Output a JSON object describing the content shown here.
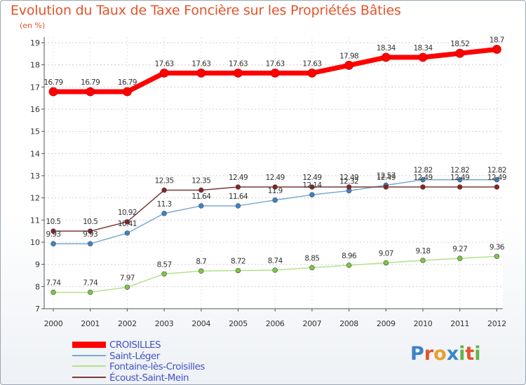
{
  "title": "Evolution du Taux de Taxe Foncière sur les Propriétés Bâties",
  "unit_label": "(en %)",
  "brand": {
    "text": "Proxiti",
    "letters": [
      "P",
      "r",
      "o",
      "x",
      "i",
      "t",
      "i"
    ],
    "letter_colors": [
      "#3c84c8",
      "#e3542b",
      "#e8a02c",
      "#3c84c8",
      "#62b44a",
      "#e3542b",
      "#62b44a"
    ]
  },
  "chart_data": {
    "type": "line",
    "title": "Evolution du Taux de Taxe Foncière sur les Propriétés Bâties",
    "ylabel": "(en %)",
    "xlabel": "",
    "categories": [
      "2000",
      "2001",
      "2002",
      "2003",
      "2004",
      "2005",
      "2006",
      "2007",
      "2008",
      "2009",
      "2010",
      "2011",
      "2012"
    ],
    "ylim": [
      7,
      19
    ],
    "yticks": [
      7,
      8,
      9,
      10,
      11,
      12,
      13,
      14,
      15,
      16,
      17,
      18,
      19
    ],
    "grid": true,
    "legend_position": "bottom-left",
    "series": [
      {
        "name": "CROISILLES",
        "color": "#ff0000",
        "marker_color": "#ff0000",
        "style": "thick",
        "values": [
          16.79,
          16.79,
          16.79,
          17.63,
          17.63,
          17.63,
          17.63,
          17.63,
          17.98,
          18.34,
          18.34,
          18.52,
          18.7
        ],
        "labels": [
          "16.79",
          "16.79",
          "16.79",
          "17.63",
          "17.63",
          "17.63",
          "17.63",
          "17.63",
          "17.98",
          "18.34",
          "18.34",
          "18.52",
          "18.7"
        ]
      },
      {
        "name": "Saint-Léger",
        "color": "#7ba9d4",
        "marker_color": "#3c84c8",
        "style": "thin",
        "values": [
          9.93,
          9.93,
          10.41,
          11.3,
          11.64,
          11.64,
          11.9,
          12.14,
          12.32,
          12.57,
          12.82,
          12.82,
          12.82
        ],
        "labels": [
          "9.93",
          "9.93",
          "10.41",
          "11.3",
          "11.64",
          "11.64",
          "11.9",
          "12.14",
          "12.32",
          "12.57",
          "12.82",
          "12.82",
          "12.82"
        ]
      },
      {
        "name": "Fontaine-lès-Croisilles",
        "color": "#b4e08c",
        "marker_color": "#7ac943",
        "style": "thin",
        "values": [
          7.74,
          7.74,
          7.97,
          8.57,
          8.7,
          8.72,
          8.74,
          8.85,
          8.96,
          9.07,
          9.18,
          9.27,
          9.36
        ],
        "labels": [
          "7.74",
          "7.74",
          "7.97",
          "8.57",
          "8.7",
          "8.72",
          "8.74",
          "8.85",
          "8.96",
          "9.07",
          "9.18",
          "9.27",
          "9.36"
        ]
      },
      {
        "name": "Écoust-Saint-Mein",
        "color": "#7a3a3a",
        "marker_color": "#8b2323",
        "style": "thin",
        "values": [
          10.5,
          10.5,
          10.92,
          12.35,
          12.35,
          12.49,
          12.49,
          12.49,
          12.49,
          12.49,
          12.49,
          12.49,
          12.49
        ],
        "labels": [
          "10.5",
          "10.5",
          "10.92",
          "12.35",
          "12.35",
          "12.49",
          "12.49",
          "12.49",
          "12.49",
          "12.49",
          "12.49",
          "12.49",
          "12.49"
        ]
      }
    ]
  }
}
